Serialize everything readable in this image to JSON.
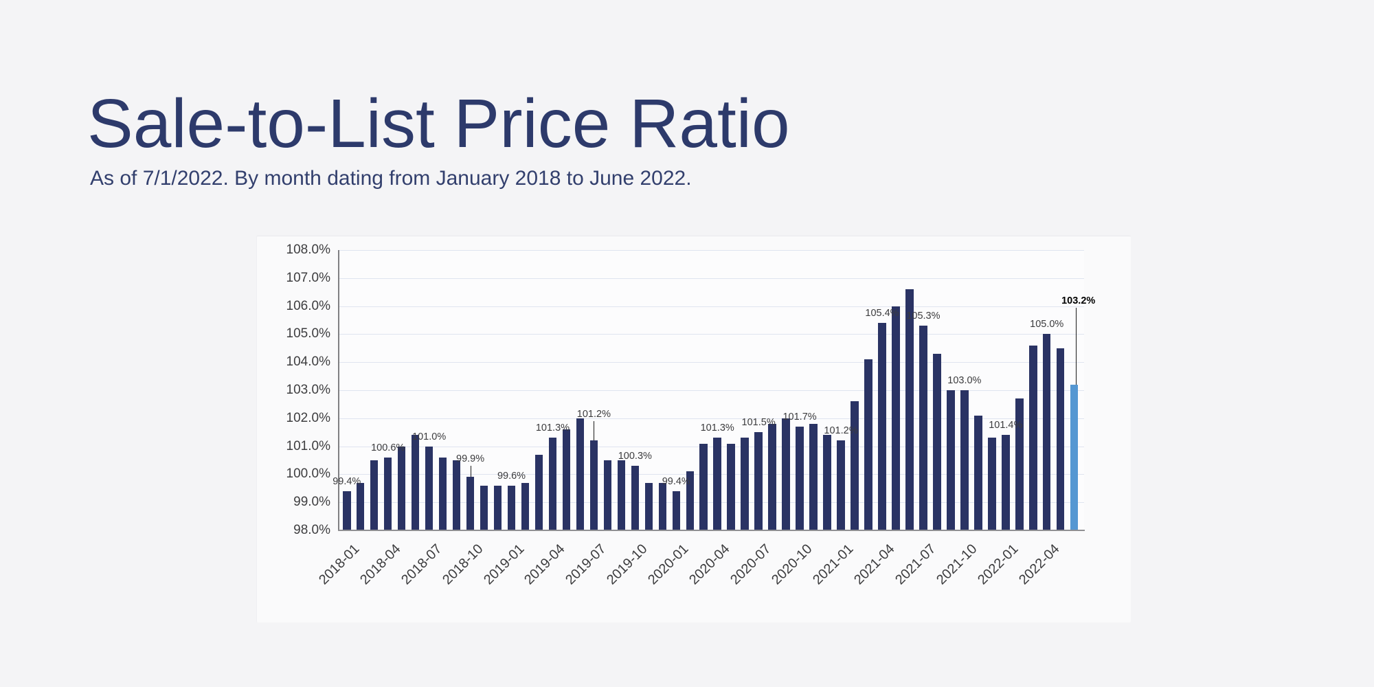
{
  "header": {
    "title": "Sale-to-List Price Ratio",
    "subtitle": "As of 7/1/2022. By month dating from January 2018 to June 2022."
  },
  "colors": {
    "bar": "#2a3364",
    "highlight_bar": "#5597d2",
    "grid": "#dfe4f0",
    "axis": "#8f8f92",
    "title_text": "#2d3a6b",
    "subtitle_text": "#323f6d",
    "label_text": "#3b3b3d",
    "page_background": "#f4f4f6"
  },
  "chart_data": {
    "type": "bar",
    "title": "Sale-to-List Price Ratio",
    "xlabel": "",
    "ylabel": "",
    "ylim": [
      98.0,
      108.0
    ],
    "grid": true,
    "legend": "none",
    "highlight_index": 53,
    "months": [
      "2018-01",
      "2018-02",
      "2018-03",
      "2018-04",
      "2018-05",
      "2018-06",
      "2018-07",
      "2018-08",
      "2018-09",
      "2018-10",
      "2018-11",
      "2018-12",
      "2019-01",
      "2019-02",
      "2019-03",
      "2019-04",
      "2019-05",
      "2019-06",
      "2019-07",
      "2019-08",
      "2019-09",
      "2019-10",
      "2019-11",
      "2019-12",
      "2020-01",
      "2020-02",
      "2020-03",
      "2020-04",
      "2020-05",
      "2020-06",
      "2020-07",
      "2020-08",
      "2020-09",
      "2020-10",
      "2020-11",
      "2020-12",
      "2021-01",
      "2021-02",
      "2021-03",
      "2021-04",
      "2021-05",
      "2021-06",
      "2021-07",
      "2021-08",
      "2021-09",
      "2021-10",
      "2021-11",
      "2021-12",
      "2022-01",
      "2022-02",
      "2022-03",
      "2022-04",
      "2022-05",
      "2022-06"
    ],
    "values": [
      99.4,
      99.7,
      100.5,
      100.6,
      101.0,
      101.4,
      101.0,
      100.6,
      100.5,
      99.9,
      99.6,
      99.6,
      99.6,
      99.7,
      100.7,
      101.3,
      101.6,
      102.0,
      101.2,
      100.5,
      100.5,
      100.3,
      99.7,
      99.7,
      99.4,
      100.1,
      101.1,
      101.3,
      101.1,
      101.3,
      101.5,
      101.8,
      102.0,
      101.7,
      101.8,
      101.4,
      101.2,
      102.6,
      104.1,
      105.4,
      106.0,
      106.6,
      105.3,
      104.3,
      103.0,
      103.0,
      102.1,
      101.3,
      101.4,
      102.7,
      104.6,
      105.0,
      104.5,
      103.2
    ],
    "y_tick_labels": [
      "108.0%",
      "107.0%",
      "106.0%",
      "105.0%",
      "104.0%",
      "103.0%",
      "102.0%",
      "101.0%",
      "100.0%",
      "99.0%",
      "98.0%"
    ],
    "x_ticks": [
      {
        "i": 0,
        "t": "2018-01"
      },
      {
        "i": 3,
        "t": "2018-04"
      },
      {
        "i": 6,
        "t": "2018-07"
      },
      {
        "i": 9,
        "t": "2018-10"
      },
      {
        "i": 12,
        "t": "2019-01"
      },
      {
        "i": 15,
        "t": "2019-04"
      },
      {
        "i": 18,
        "t": "2019-07"
      },
      {
        "i": 21,
        "t": "2019-10"
      },
      {
        "i": 24,
        "t": "2020-01"
      },
      {
        "i": 27,
        "t": "2020-04"
      },
      {
        "i": 30,
        "t": "2020-07"
      },
      {
        "i": 33,
        "t": "2020-10"
      },
      {
        "i": 36,
        "t": "2021-01"
      },
      {
        "i": 39,
        "t": "2021-04"
      },
      {
        "i": 42,
        "t": "2021-07"
      },
      {
        "i": 45,
        "t": "2021-10"
      },
      {
        "i": 48,
        "t": "2022-01"
      },
      {
        "i": 51,
        "t": "2022-04"
      }
    ],
    "bar_labels": [
      {
        "i": 0,
        "t": "99.4%"
      },
      {
        "i": 3,
        "t": "100.6%"
      },
      {
        "i": 6,
        "t": "101.0%"
      },
      {
        "i": 9,
        "t": "99.9%",
        "leader": 16
      },
      {
        "i": 12,
        "t": "99.6%"
      },
      {
        "i": 15,
        "t": "101.3%"
      },
      {
        "i": 18,
        "t": "101.2%",
        "leader": 28
      },
      {
        "i": 21,
        "t": "100.3%"
      },
      {
        "i": 24,
        "t": "99.4%"
      },
      {
        "i": 27,
        "t": "101.3%"
      },
      {
        "i": 30,
        "t": "101.5%"
      },
      {
        "i": 33,
        "t": "101.7%"
      },
      {
        "i": 36,
        "t": "101.2%"
      },
      {
        "i": 39,
        "t": "105.4%"
      },
      {
        "i": 42,
        "t": "105.3%"
      },
      {
        "i": 45,
        "t": "103.0%"
      },
      {
        "i": 48,
        "t": "101.4%"
      },
      {
        "i": 51,
        "t": "105.0%"
      },
      {
        "i": 53,
        "t": "103.2%",
        "leader": 112,
        "bold": true
      }
    ]
  }
}
